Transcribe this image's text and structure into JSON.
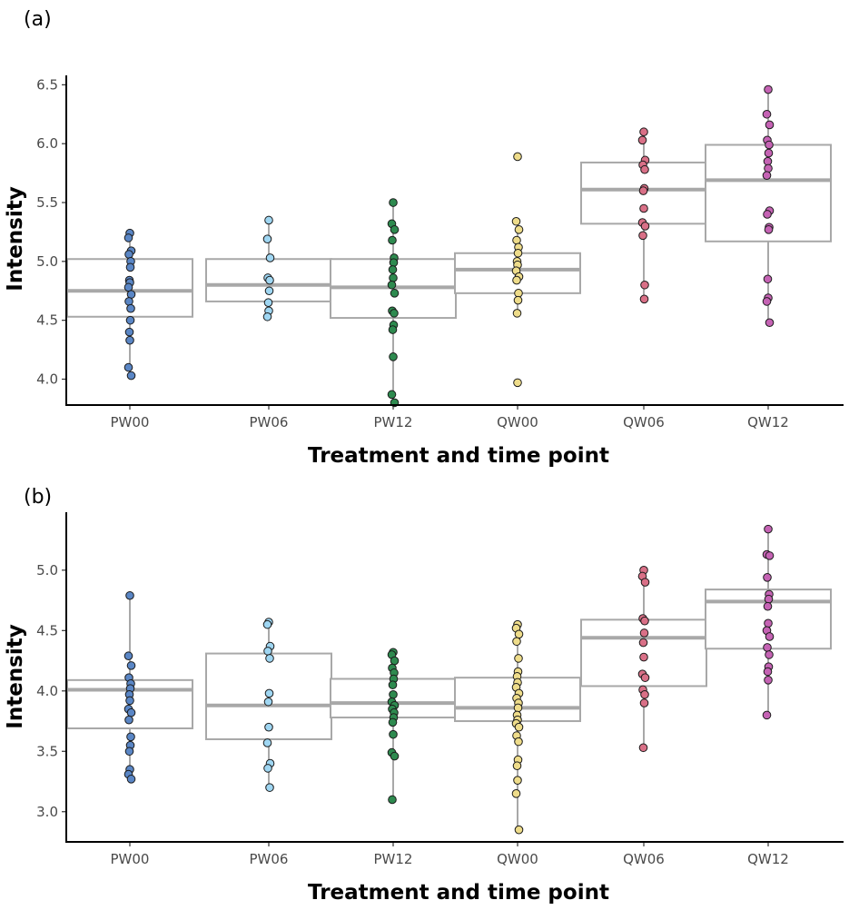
{
  "chart_data": [
    {
      "type": "box",
      "panel_label": "(a)",
      "xlabel": "Treatment and time point",
      "ylabel": "Intensity",
      "ylim": [
        3.78,
        6.58
      ],
      "yticks": [
        4.0,
        4.5,
        5.0,
        5.5,
        6.0,
        6.5
      ],
      "ytick_labels": [
        "4.0",
        "4.5",
        "5.0",
        "5.5",
        "6.0",
        "6.5"
      ],
      "categories": [
        "PW00",
        "PW06",
        "PW12",
        "QW00",
        "QW06",
        "QW12"
      ],
      "colors": [
        "#5a86c5",
        "#9fd6f2",
        "#2e8a4f",
        "#eedc8a",
        "#d97087",
        "#c563b4"
      ],
      "boxes": [
        {
          "q1": 4.53,
          "median": 4.75,
          "q3": 5.02,
          "whisker_low": 4.03,
          "whisker_high": 5.24
        },
        {
          "q1": 4.66,
          "median": 4.8,
          "q3": 5.02,
          "whisker_low": 4.53,
          "whisker_high": 5.35
        },
        {
          "q1": 4.52,
          "median": 4.78,
          "q3": 5.02,
          "whisker_low": 3.8,
          "whisker_high": 5.5
        },
        {
          "q1": 4.73,
          "median": 4.93,
          "q3": 5.07,
          "whisker_low": 4.56,
          "whisker_high": 5.34
        },
        {
          "q1": 5.32,
          "median": 5.61,
          "q3": 5.84,
          "whisker_low": 4.68,
          "whisker_high": 6.1
        },
        {
          "q1": 5.17,
          "median": 5.69,
          "q3": 5.99,
          "whisker_low": 4.48,
          "whisker_high": 6.46
        }
      ],
      "points": [
        [
          5.24,
          5.2,
          5.09,
          5.06,
          5.0,
          4.95,
          4.84,
          4.82,
          4.78,
          4.72,
          4.66,
          4.6,
          4.5,
          4.4,
          4.33,
          4.1,
          4.03
        ],
        [
          5.35,
          5.19,
          5.03,
          4.86,
          4.84,
          4.75,
          4.65,
          4.58,
          4.53
        ],
        [
          5.5,
          5.32,
          5.27,
          5.18,
          5.03,
          4.99,
          4.93,
          4.86,
          4.8,
          4.73,
          4.58,
          4.56,
          4.46,
          4.42,
          4.19,
          3.87,
          3.8
        ],
        [
          5.89,
          5.34,
          5.27,
          5.18,
          5.12,
          5.07,
          5.0,
          4.97,
          4.92,
          4.87,
          4.84,
          4.73,
          4.67,
          4.56,
          3.97
        ],
        [
          6.1,
          6.03,
          5.86,
          5.82,
          5.78,
          5.62,
          5.6,
          5.45,
          5.33,
          5.3,
          5.22,
          4.8,
          4.68
        ],
        [
          6.46,
          6.25,
          6.16,
          6.03,
          5.99,
          5.92,
          5.85,
          5.79,
          5.73,
          5.43,
          5.4,
          5.29,
          5.27,
          4.85,
          4.69,
          4.66,
          4.48
        ]
      ]
    },
    {
      "type": "box",
      "panel_label": "(b)",
      "xlabel": "Treatment and time point",
      "ylabel": "Intensity",
      "ylim": [
        2.75,
        5.48
      ],
      "yticks": [
        3.0,
        3.5,
        4.0,
        4.5,
        5.0
      ],
      "ytick_labels": [
        "3.0",
        "3.5",
        "4.0",
        "4.5",
        "5.0"
      ],
      "categories": [
        "PW00",
        "PW06",
        "PW12",
        "QW00",
        "QW06",
        "QW12"
      ],
      "colors": [
        "#5a86c5",
        "#9fd6f2",
        "#2e8a4f",
        "#eedc8a",
        "#d97087",
        "#c563b4"
      ],
      "boxes": [
        {
          "q1": 3.69,
          "median": 4.01,
          "q3": 4.09,
          "whisker_low": 3.27,
          "whisker_high": 4.79
        },
        {
          "q1": 3.6,
          "median": 3.88,
          "q3": 4.31,
          "whisker_low": 3.2,
          "whisker_high": 4.57
        },
        {
          "q1": 3.78,
          "median": 3.9,
          "q3": 4.1,
          "whisker_low": 3.1,
          "whisker_high": 4.32
        },
        {
          "q1": 3.75,
          "median": 3.86,
          "q3": 4.11,
          "whisker_low": 2.85,
          "whisker_high": 4.55
        },
        {
          "q1": 4.04,
          "median": 4.44,
          "q3": 4.59,
          "whisker_low": 3.53,
          "whisker_high": 5.0
        },
        {
          "q1": 4.35,
          "median": 4.74,
          "q3": 4.84,
          "whisker_low": 3.8,
          "whisker_high": 5.34
        }
      ],
      "points": [
        [
          4.79,
          4.29,
          4.21,
          4.11,
          4.06,
          4.02,
          3.97,
          3.92,
          3.85,
          3.82,
          3.76,
          3.62,
          3.55,
          3.5,
          3.35,
          3.31,
          3.27
        ],
        [
          4.57,
          4.55,
          4.37,
          4.33,
          4.27,
          3.98,
          3.91,
          3.7,
          3.57,
          3.4,
          3.36,
          3.2
        ],
        [
          4.32,
          4.3,
          4.25,
          4.19,
          4.15,
          4.1,
          4.05,
          3.97,
          3.91,
          3.88,
          3.85,
          3.82,
          3.78,
          3.74,
          3.64,
          3.49,
          3.46,
          3.1
        ],
        [
          4.55,
          4.52,
          4.47,
          4.41,
          4.27,
          4.16,
          4.12,
          4.07,
          4.03,
          3.98,
          3.94,
          3.9,
          3.86,
          3.8,
          3.76,
          3.73,
          3.7,
          3.63,
          3.58,
          3.43,
          3.38,
          3.26,
          3.15,
          2.85
        ],
        [
          5.0,
          4.95,
          4.9,
          4.6,
          4.58,
          4.48,
          4.4,
          4.28,
          4.14,
          4.11,
          4.01,
          3.97,
          3.9,
          3.53
        ],
        [
          5.34,
          5.13,
          5.12,
          4.94,
          4.8,
          4.76,
          4.7,
          4.56,
          4.5,
          4.45,
          4.36,
          4.3,
          4.2,
          4.16,
          4.09,
          3.8
        ]
      ]
    }
  ]
}
